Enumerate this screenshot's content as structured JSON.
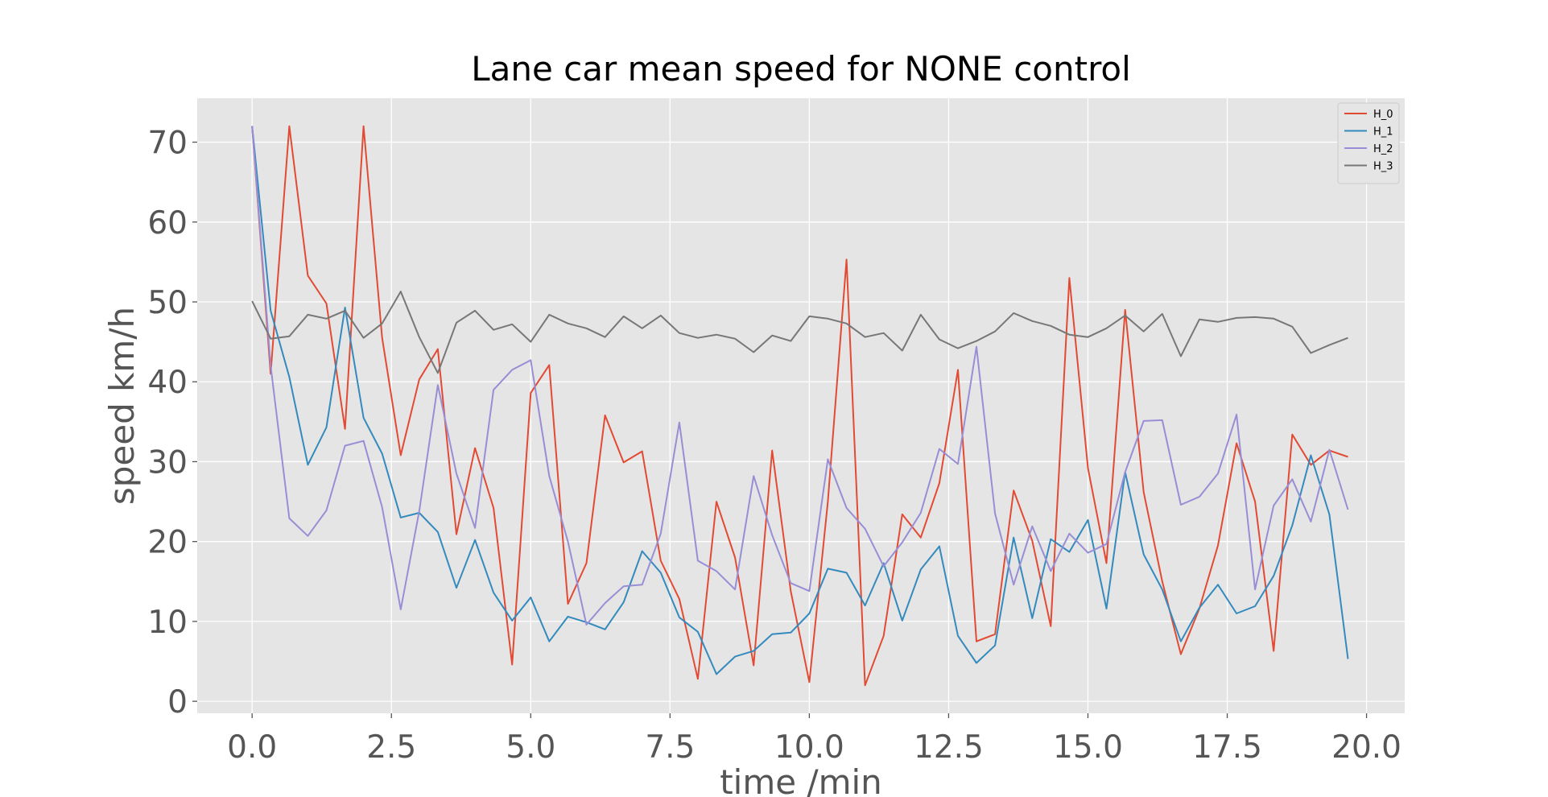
{
  "chart_data": {
    "type": "line",
    "title": "Lane car mean speed for NONE control",
    "xlabel": "time /min",
    "ylabel": "speed km/h",
    "xlim": [
      -0.985,
      20.685
    ],
    "ylim": [
      -1.5,
      75.5
    ],
    "xticks": [
      0.0,
      2.5,
      5.0,
      7.5,
      10.0,
      12.5,
      15.0,
      17.5,
      20.0
    ],
    "xtick_labels": [
      "0.0",
      "2.5",
      "5.0",
      "7.5",
      "10.0",
      "12.5",
      "15.0",
      "17.5",
      "20.0"
    ],
    "yticks": [
      0,
      10,
      20,
      30,
      40,
      50,
      60,
      70
    ],
    "ytick_labels": [
      "0",
      "10",
      "20",
      "30",
      "40",
      "50",
      "60",
      "70"
    ],
    "grid": true,
    "legend_position": "top-right",
    "x": [
      0.0,
      0.333,
      0.667,
      1.0,
      1.333,
      1.667,
      2.0,
      2.333,
      2.667,
      3.0,
      3.333,
      3.667,
      4.0,
      4.333,
      4.667,
      5.0,
      5.333,
      5.667,
      6.0,
      6.333,
      6.667,
      7.0,
      7.333,
      7.667,
      8.0,
      8.333,
      8.667,
      9.0,
      9.333,
      9.667,
      10.0,
      10.333,
      10.667,
      11.0,
      11.333,
      11.667,
      12.0,
      12.333,
      12.667,
      13.0,
      13.333,
      13.667,
      14.0,
      14.333,
      14.667,
      15.0,
      15.333,
      15.667,
      16.0,
      16.333,
      16.667,
      17.0,
      17.333,
      17.667,
      18.0,
      18.333,
      18.667,
      19.0,
      19.333,
      19.667
    ],
    "series": [
      {
        "name": "H_0",
        "color": "#E24A33",
        "values": [
          72.0,
          41.0,
          72.0,
          53.3,
          49.8,
          34.1,
          72.0,
          45.5,
          30.8,
          40.3,
          44.1,
          20.9,
          31.7,
          24.2,
          4.6,
          38.6,
          42.1,
          12.2,
          17.3,
          35.8,
          29.9,
          31.3,
          17.6,
          12.8,
          2.8,
          25.0,
          18.0,
          4.5,
          31.4,
          13.8,
          2.4,
          25.0,
          55.3,
          2.0,
          8.2,
          23.4,
          20.5,
          27.3,
          41.5,
          7.5,
          8.4,
          26.4,
          20.1,
          9.4,
          53.0,
          29.2,
          17.3,
          49.0,
          26.2,
          15.0,
          5.9,
          11.6,
          19.5,
          32.3,
          25.0,
          6.3,
          33.4,
          29.6,
          31.4,
          30.6
        ]
      },
      {
        "name": "H_1",
        "color": "#348ABD",
        "values": [
          72.0,
          48.9,
          40.6,
          29.6,
          34.3,
          49.3,
          35.5,
          31.0,
          23.0,
          23.6,
          21.2,
          14.2,
          20.2,
          13.6,
          10.1,
          13.0,
          7.5,
          10.6,
          9.9,
          9.0,
          12.4,
          18.8,
          16.1,
          10.5,
          8.7,
          3.4,
          5.6,
          6.3,
          8.4,
          8.6,
          11.0,
          16.6,
          16.1,
          12.0,
          17.3,
          10.1,
          16.5,
          19.4,
          8.2,
          4.8,
          7.0,
          20.5,
          10.4,
          20.3,
          18.7,
          22.7,
          11.6,
          28.7,
          18.4,
          14.0,
          7.5,
          11.7,
          14.6,
          11.0,
          11.9,
          15.7,
          22.0,
          30.8,
          23.4,
          5.3
        ]
      },
      {
        "name": "H_2",
        "color": "#988ED5",
        "values": [
          72.0,
          42.0,
          22.9,
          20.7,
          23.9,
          32.0,
          32.6,
          24.3,
          11.5,
          23.8,
          39.6,
          28.5,
          21.7,
          39.0,
          41.5,
          42.7,
          28.2,
          20.0,
          9.6,
          12.3,
          14.4,
          14.6,
          21.0,
          34.9,
          17.6,
          16.3,
          14.0,
          28.2,
          20.8,
          14.8,
          13.8,
          30.3,
          24.2,
          21.6,
          16.9,
          19.9,
          23.6,
          31.6,
          29.7,
          44.4,
          23.5,
          14.6,
          21.9,
          16.3,
          21.0,
          18.6,
          19.7,
          28.7,
          35.1,
          35.2,
          24.6,
          25.6,
          28.5,
          35.9,
          14.0,
          24.5,
          27.8,
          22.5,
          31.5,
          24.0
        ]
      },
      {
        "name": "H_3",
        "color": "#777777",
        "values": [
          50.1,
          45.4,
          45.7,
          48.4,
          47.9,
          48.9,
          45.5,
          47.3,
          51.3,
          45.6,
          41.1,
          47.4,
          48.9,
          46.5,
          47.2,
          45.0,
          48.4,
          47.3,
          46.7,
          45.6,
          48.2,
          46.7,
          48.3,
          46.1,
          45.5,
          45.9,
          45.4,
          43.7,
          45.8,
          45.1,
          48.2,
          47.9,
          47.3,
          45.6,
          46.1,
          43.9,
          48.4,
          45.3,
          44.2,
          45.1,
          46.3,
          48.6,
          47.6,
          47.0,
          45.9,
          45.6,
          46.7,
          48.3,
          46.3,
          48.5,
          43.2,
          47.8,
          47.5,
          48.0,
          48.1,
          47.9,
          46.9,
          43.6,
          44.6,
          45.5
        ]
      }
    ]
  }
}
